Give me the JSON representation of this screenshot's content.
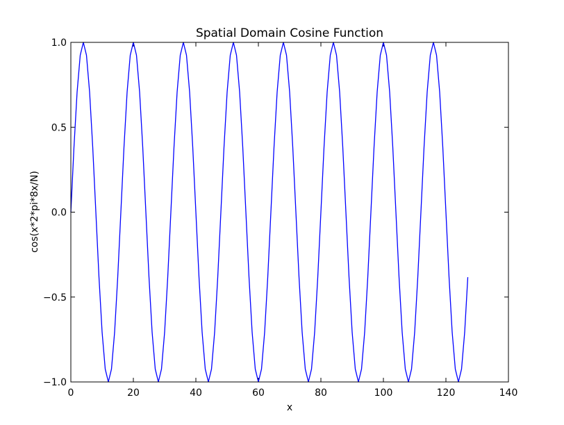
{
  "chart_data": {
    "type": "line",
    "title": "Spatial Domain Cosine Function",
    "xlabel": "x",
    "ylabel": "cos(x*2*pi*8x/N)",
    "xlim": [
      0,
      140
    ],
    "ylim": [
      -1.0,
      1.0
    ],
    "x_ticks": [
      0,
      20,
      40,
      60,
      80,
      100,
      120,
      140
    ],
    "x_tick_labels": [
      "0",
      "20",
      "40",
      "60",
      "80",
      "100",
      "120",
      "140"
    ],
    "y_ticks": [
      -1.0,
      -0.5,
      0.0,
      0.5,
      1.0
    ],
    "y_tick_labels": [
      "−1.0",
      "−0.5",
      "0.0",
      "0.5",
      "1.0"
    ],
    "grid": false,
    "series": [
      {
        "color": "#0000ff",
        "x": [
          0,
          1,
          2,
          3,
          4,
          5,
          6,
          7,
          8,
          9,
          10,
          11,
          12,
          13,
          14,
          15,
          16,
          17,
          18,
          19,
          20,
          21,
          22,
          23,
          24,
          25,
          26,
          27,
          28,
          29,
          30,
          31,
          32,
          33,
          34,
          35,
          36,
          37,
          38,
          39,
          40,
          41,
          42,
          43,
          44,
          45,
          46,
          47,
          48,
          49,
          50,
          51,
          52,
          53,
          54,
          55,
          56,
          57,
          58,
          59,
          60,
          61,
          62,
          63,
          64,
          65,
          66,
          67,
          68,
          69,
          70,
          71,
          72,
          73,
          74,
          75,
          76,
          77,
          78,
          79,
          80,
          81,
          82,
          83,
          84,
          85,
          86,
          87,
          88,
          89,
          90,
          91,
          92,
          93,
          94,
          95,
          96,
          97,
          98,
          99,
          100,
          101,
          102,
          103,
          104,
          105,
          106,
          107,
          108,
          109,
          110,
          111,
          112,
          113,
          114,
          115,
          116,
          117,
          118,
          119,
          120,
          121,
          122,
          123,
          124,
          125,
          126,
          127
        ],
        "y": [
          0.0,
          0.383,
          0.707,
          0.924,
          1.0,
          0.924,
          0.707,
          0.383,
          0.0,
          -0.383,
          -0.707,
          -0.924,
          -1.0,
          -0.924,
          -0.707,
          -0.383,
          0.0,
          0.383,
          0.707,
          0.924,
          1.0,
          0.924,
          0.707,
          0.383,
          0.0,
          -0.383,
          -0.707,
          -0.924,
          -1.0,
          -0.924,
          -0.707,
          -0.383,
          0.0,
          0.383,
          0.707,
          0.924,
          1.0,
          0.924,
          0.707,
          0.383,
          0.0,
          -0.383,
          -0.707,
          -0.924,
          -1.0,
          -0.924,
          -0.707,
          -0.383,
          0.0,
          0.383,
          0.707,
          0.924,
          1.0,
          0.924,
          0.707,
          0.383,
          0.0,
          -0.383,
          -0.707,
          -0.924,
          -1.0,
          -0.924,
          -0.707,
          -0.383,
          0.0,
          0.383,
          0.707,
          0.924,
          1.0,
          0.924,
          0.707,
          0.383,
          0.0,
          -0.383,
          -0.707,
          -0.924,
          -1.0,
          -0.924,
          -0.707,
          -0.383,
          0.0,
          0.383,
          0.707,
          0.924,
          1.0,
          0.924,
          0.707,
          0.383,
          0.0,
          -0.383,
          -0.707,
          -0.924,
          -1.0,
          -0.924,
          -0.707,
          -0.383,
          0.0,
          0.383,
          0.707,
          0.924,
          1.0,
          0.924,
          0.707,
          0.383,
          0.0,
          -0.383,
          -0.707,
          -0.924,
          -1.0,
          -0.924,
          -0.707,
          -0.383,
          0.0,
          0.383,
          0.707,
          0.924,
          1.0,
          0.924,
          0.707,
          0.383,
          0.0,
          -0.383,
          -0.707,
          -0.924,
          -1.0,
          -0.924,
          -0.707,
          -0.383
        ]
      }
    ]
  }
}
